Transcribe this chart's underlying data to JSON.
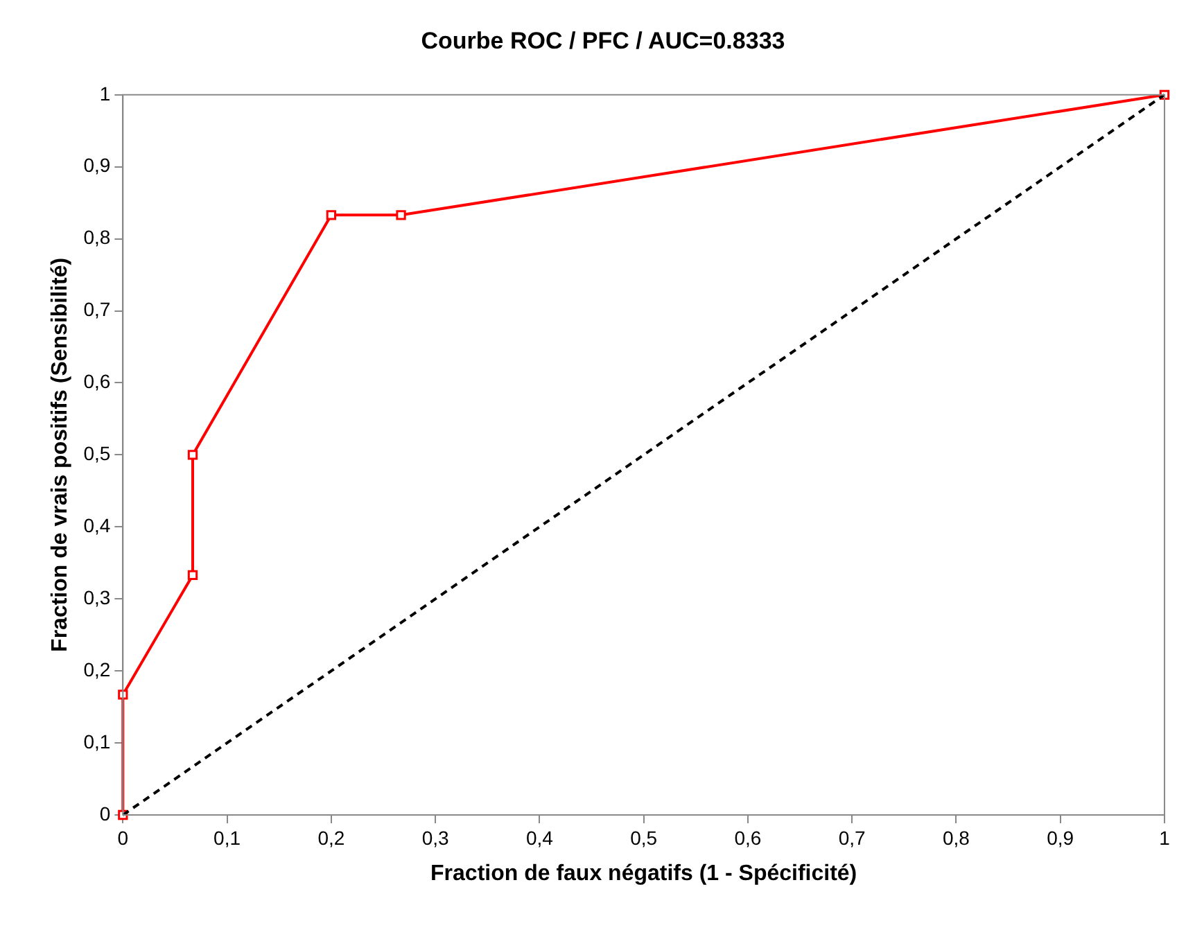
{
  "chart_data": {
    "type": "line",
    "title": "Courbe ROC / PFC / AUC=0.8333",
    "xlabel": "Fraction de faux négatifs (1 - Spécificité)",
    "ylabel": "Fraction de vrais positifs (Sensibilité)",
    "xlim": [
      0,
      1
    ],
    "ylim": [
      0,
      1
    ],
    "xticks": [
      0,
      {
        "value": 0.1,
        "label": "0,1"
      },
      {
        "value": 0.2,
        "label": "0,2"
      },
      {
        "value": 0.3,
        "label": "0,3"
      },
      {
        "value": 0.4,
        "label": "0,4"
      },
      {
        "value": 0.5,
        "label": "0,5"
      },
      {
        "value": 0.6,
        "label": "0,6"
      },
      {
        "value": 0.7,
        "label": "0,7"
      },
      {
        "value": 0.8,
        "label": "0,8"
      },
      {
        "value": 0.9,
        "label": "0,9"
      },
      1
    ],
    "yticks": [
      0,
      {
        "value": 0.1,
        "label": "0,1"
      },
      {
        "value": 0.2,
        "label": "0,2"
      },
      {
        "value": 0.3,
        "label": "0,3"
      },
      {
        "value": 0.4,
        "label": "0,4"
      },
      {
        "value": 0.5,
        "label": "0,5"
      },
      {
        "value": 0.6,
        "label": "0,6"
      },
      {
        "value": 0.7,
        "label": "0,7"
      },
      {
        "value": 0.8,
        "label": "0,8"
      },
      {
        "value": 0.9,
        "label": "0,9"
      },
      1
    ],
    "grid": false,
    "legend": false,
    "series": [
      {
        "type": "line",
        "color": "#ff0000",
        "marker": "square",
        "line_style": "solid",
        "x": [
          0,
          0,
          0.067,
          0.067,
          0.2,
          0.267,
          1
        ],
        "values": [
          0,
          0.167,
          0.333,
          0.5,
          0.833,
          0.833,
          1
        ]
      },
      {
        "type": "line",
        "color": "#000000",
        "marker": "none",
        "line_style": "dashed",
        "x": [
          0,
          1
        ],
        "values": [
          0,
          1
        ]
      }
    ]
  }
}
